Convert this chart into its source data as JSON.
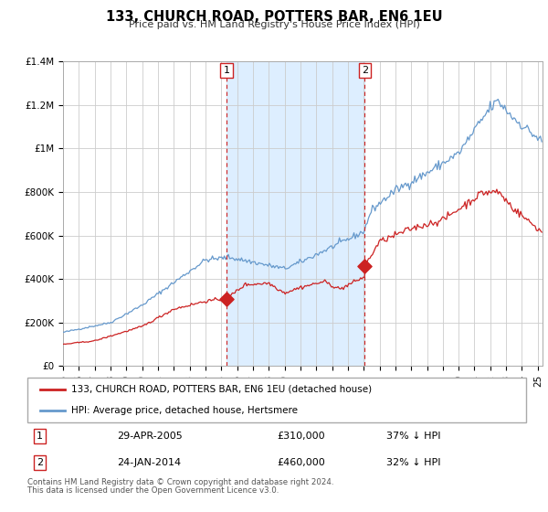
{
  "title": "133, CHURCH ROAD, POTTERS BAR, EN6 1EU",
  "subtitle": "Price paid vs. HM Land Registry's House Price Index (HPI)",
  "ylim": [
    0,
    1400000
  ],
  "xlim_start": 1995.0,
  "xlim_end": 2025.3,
  "background_color": "#ffffff",
  "plot_bg_color": "#ffffff",
  "grid_color": "#cccccc",
  "hpi_color": "#6699cc",
  "price_color": "#cc2222",
  "shaded_region_color": "#ddeeff",
  "marker1_date": 2005.33,
  "marker1_price": 310000,
  "marker2_date": 2014.07,
  "marker2_price": 460000,
  "legend_line1": "133, CHURCH ROAD, POTTERS BAR, EN6 1EU (detached house)",
  "legend_line2": "HPI: Average price, detached house, Hertsmere",
  "marker1_text": "29-APR-2005",
  "marker1_price_text": "£310,000",
  "marker1_pct": "37% ↓ HPI",
  "marker2_text": "24-JAN-2014",
  "marker2_price_text": "£460,000",
  "marker2_pct": "32% ↓ HPI",
  "footer1": "Contains HM Land Registry data © Crown copyright and database right 2024.",
  "footer2": "This data is licensed under the Open Government Licence v3.0.",
  "yticks": [
    0,
    200000,
    400000,
    600000,
    800000,
    1000000,
    1200000,
    1400000
  ],
  "ytick_labels": [
    "£0",
    "£200K",
    "£400K",
    "£600K",
    "£800K",
    "£1M",
    "£1.2M",
    "£1.4M"
  ]
}
